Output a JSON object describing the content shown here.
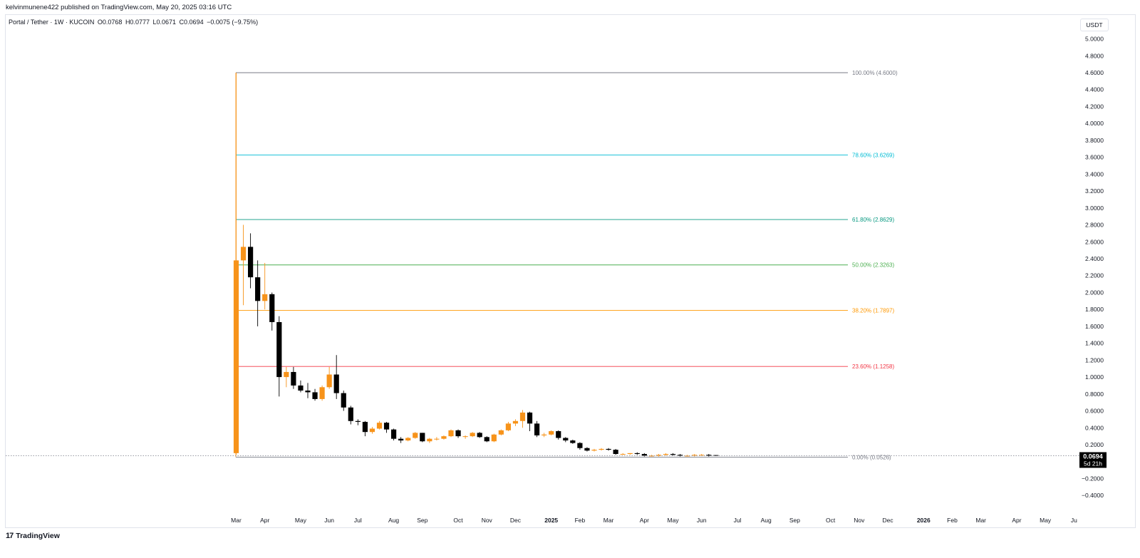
{
  "publisher_line": "kelvinmunene422 published on TradingView.com, May 20, 2025 03:16 UTC",
  "symbol": {
    "name": "Portal / Tether · 1W · KUCOIN",
    "open": "O0.0768",
    "high": "H0.0777",
    "low": "L0.0671",
    "close": "C0.0694",
    "change": "−0.0075 (−9.75%)"
  },
  "currency_label": "USDT",
  "brand": {
    "logo": "17",
    "name": "TradingView"
  },
  "last_price": {
    "value": "0.0694",
    "countdown": "5d 21h"
  },
  "colors": {
    "up": "#f7931a",
    "down": "#000000",
    "axis_text": "#131722"
  },
  "chart_data": {
    "type": "candlestick",
    "title": "Portal / Tether · 1W · KUCOIN",
    "ylabel": "USDT",
    "ylim": [
      -0.48,
      5.1
    ],
    "y_ticks": [
      "5.0000",
      "4.8000",
      "4.6000",
      "4.4000",
      "4.2000",
      "4.0000",
      "3.8000",
      "3.6000",
      "3.4000",
      "3.2000",
      "3.0000",
      "2.8000",
      "2.6000",
      "2.4000",
      "2.2000",
      "2.0000",
      "1.8000",
      "1.6000",
      "1.4000",
      "1.2000",
      "1.0000",
      "0.8000",
      "0.6000",
      "0.4000",
      "0.2000",
      "−0.2000",
      "−0.4000"
    ],
    "x_ticks": [
      {
        "label": "Mar",
        "week": 0,
        "bold": false
      },
      {
        "label": "Apr",
        "week": 4,
        "bold": false
      },
      {
        "label": "May",
        "week": 9,
        "bold": false
      },
      {
        "label": "Jun",
        "week": 13,
        "bold": false
      },
      {
        "label": "Jul",
        "week": 17,
        "bold": false
      },
      {
        "label": "Aug",
        "week": 22,
        "bold": false
      },
      {
        "label": "Sep",
        "week": 26,
        "bold": false
      },
      {
        "label": "Oct",
        "week": 31,
        "bold": false
      },
      {
        "label": "Nov",
        "week": 35,
        "bold": false
      },
      {
        "label": "Dec",
        "week": 39,
        "bold": false
      },
      {
        "label": "2025",
        "week": 44,
        "bold": true
      },
      {
        "label": "Feb",
        "week": 48,
        "bold": false
      },
      {
        "label": "Mar",
        "week": 52,
        "bold": false
      },
      {
        "label": "Apr",
        "week": 57,
        "bold": false
      },
      {
        "label": "May",
        "week": 61,
        "bold": false
      },
      {
        "label": "Jun",
        "week": 65,
        "bold": false
      },
      {
        "label": "Jul",
        "week": 70,
        "bold": false
      },
      {
        "label": "Aug",
        "week": 74,
        "bold": false
      },
      {
        "label": "Sep",
        "week": 78,
        "bold": false
      },
      {
        "label": "Oct",
        "week": 83,
        "bold": false
      },
      {
        "label": "Nov",
        "week": 87,
        "bold": false
      },
      {
        "label": "Dec",
        "week": 91,
        "bold": false
      },
      {
        "label": "2026",
        "week": 96,
        "bold": true
      },
      {
        "label": "Feb",
        "week": 100,
        "bold": false
      },
      {
        "label": "Mar",
        "week": 104,
        "bold": false
      },
      {
        "label": "Apr",
        "week": 109,
        "bold": false
      },
      {
        "label": "May",
        "week": 113,
        "bold": false
      },
      {
        "label": "Ju",
        "week": 117,
        "bold": false
      }
    ],
    "candles": [
      {
        "o": 0.1,
        "h": 4.6,
        "l": 0.08,
        "c": 2.38
      },
      {
        "o": 2.38,
        "h": 2.8,
        "l": 1.85,
        "c": 2.54
      },
      {
        "o": 2.54,
        "h": 2.7,
        "l": 2.05,
        "c": 2.18
      },
      {
        "o": 2.18,
        "h": 2.38,
        "l": 1.6,
        "c": 1.9
      },
      {
        "o": 1.9,
        "h": 2.35,
        "l": 1.8,
        "c": 1.98
      },
      {
        "o": 1.98,
        "h": 2.0,
        "l": 1.55,
        "c": 1.65
      },
      {
        "o": 1.65,
        "h": 1.72,
        "l": 0.77,
        "c": 1.0
      },
      {
        "o": 1.0,
        "h": 1.12,
        "l": 0.88,
        "c": 1.06
      },
      {
        "o": 1.06,
        "h": 1.12,
        "l": 0.86,
        "c": 0.9
      },
      {
        "o": 0.9,
        "h": 0.96,
        "l": 0.82,
        "c": 0.84
      },
      {
        "o": 0.84,
        "h": 0.93,
        "l": 0.75,
        "c": 0.82
      },
      {
        "o": 0.82,
        "h": 0.86,
        "l": 0.72,
        "c": 0.74
      },
      {
        "o": 0.74,
        "h": 0.9,
        "l": 0.72,
        "c": 0.88
      },
      {
        "o": 0.88,
        "h": 1.12,
        "l": 0.86,
        "c": 1.03
      },
      {
        "o": 1.03,
        "h": 1.26,
        "l": 0.74,
        "c": 0.81
      },
      {
        "o": 0.81,
        "h": 0.84,
        "l": 0.6,
        "c": 0.64
      },
      {
        "o": 0.64,
        "h": 0.66,
        "l": 0.44,
        "c": 0.48
      },
      {
        "o": 0.48,
        "h": 0.5,
        "l": 0.43,
        "c": 0.47
      },
      {
        "o": 0.47,
        "h": 0.48,
        "l": 0.3,
        "c": 0.35
      },
      {
        "o": 0.35,
        "h": 0.41,
        "l": 0.33,
        "c": 0.39
      },
      {
        "o": 0.39,
        "h": 0.48,
        "l": 0.38,
        "c": 0.46
      },
      {
        "o": 0.46,
        "h": 0.47,
        "l": 0.34,
        "c": 0.38
      },
      {
        "o": 0.38,
        "h": 0.39,
        "l": 0.25,
        "c": 0.27
      },
      {
        "o": 0.27,
        "h": 0.29,
        "l": 0.22,
        "c": 0.25
      },
      {
        "o": 0.25,
        "h": 0.29,
        "l": 0.24,
        "c": 0.28
      },
      {
        "o": 0.28,
        "h": 0.35,
        "l": 0.27,
        "c": 0.34
      },
      {
        "o": 0.34,
        "h": 0.34,
        "l": 0.23,
        "c": 0.24
      },
      {
        "o": 0.24,
        "h": 0.28,
        "l": 0.22,
        "c": 0.27
      },
      {
        "o": 0.27,
        "h": 0.29,
        "l": 0.25,
        "c": 0.27
      },
      {
        "o": 0.27,
        "h": 0.31,
        "l": 0.26,
        "c": 0.3
      },
      {
        "o": 0.3,
        "h": 0.38,
        "l": 0.29,
        "c": 0.37
      },
      {
        "o": 0.37,
        "h": 0.38,
        "l": 0.28,
        "c": 0.3
      },
      {
        "o": 0.3,
        "h": 0.31,
        "l": 0.27,
        "c": 0.3
      },
      {
        "o": 0.3,
        "h": 0.35,
        "l": 0.29,
        "c": 0.34
      },
      {
        "o": 0.34,
        "h": 0.35,
        "l": 0.28,
        "c": 0.29
      },
      {
        "o": 0.29,
        "h": 0.3,
        "l": 0.23,
        "c": 0.24
      },
      {
        "o": 0.24,
        "h": 0.33,
        "l": 0.23,
        "c": 0.32
      },
      {
        "o": 0.32,
        "h": 0.38,
        "l": 0.31,
        "c": 0.37
      },
      {
        "o": 0.37,
        "h": 0.47,
        "l": 0.36,
        "c": 0.45
      },
      {
        "o": 0.45,
        "h": 0.5,
        "l": 0.42,
        "c": 0.48
      },
      {
        "o": 0.48,
        "h": 0.61,
        "l": 0.4,
        "c": 0.58
      },
      {
        "o": 0.58,
        "h": 0.59,
        "l": 0.36,
        "c": 0.45
      },
      {
        "o": 0.45,
        "h": 0.48,
        "l": 0.29,
        "c": 0.31
      },
      {
        "o": 0.31,
        "h": 0.34,
        "l": 0.29,
        "c": 0.32
      },
      {
        "o": 0.32,
        "h": 0.37,
        "l": 0.31,
        "c": 0.36
      },
      {
        "o": 0.36,
        "h": 0.37,
        "l": 0.26,
        "c": 0.28
      },
      {
        "o": 0.28,
        "h": 0.29,
        "l": 0.23,
        "c": 0.25
      },
      {
        "o": 0.25,
        "h": 0.26,
        "l": 0.21,
        "c": 0.22
      },
      {
        "o": 0.22,
        "h": 0.23,
        "l": 0.14,
        "c": 0.16
      },
      {
        "o": 0.16,
        "h": 0.17,
        "l": 0.12,
        "c": 0.13
      },
      {
        "o": 0.13,
        "h": 0.15,
        "l": 0.12,
        "c": 0.14
      },
      {
        "o": 0.14,
        "h": 0.16,
        "l": 0.13,
        "c": 0.15
      },
      {
        "o": 0.15,
        "h": 0.16,
        "l": 0.13,
        "c": 0.14
      },
      {
        "o": 0.14,
        "h": 0.15,
        "l": 0.08,
        "c": 0.09
      },
      {
        "o": 0.09,
        "h": 0.1,
        "l": 0.08,
        "c": 0.09
      },
      {
        "o": 0.09,
        "h": 0.1,
        "l": 0.08,
        "c": 0.1
      },
      {
        "o": 0.1,
        "h": 0.11,
        "l": 0.08,
        "c": 0.09
      },
      {
        "o": 0.09,
        "h": 0.1,
        "l": 0.06,
        "c": 0.07
      },
      {
        "o": 0.07,
        "h": 0.08,
        "l": 0.06,
        "c": 0.07
      },
      {
        "o": 0.07,
        "h": 0.09,
        "l": 0.06,
        "c": 0.08
      },
      {
        "o": 0.08,
        "h": 0.1,
        "l": 0.07,
        "c": 0.09
      },
      {
        "o": 0.09,
        "h": 0.1,
        "l": 0.07,
        "c": 0.08
      },
      {
        "o": 0.08,
        "h": 0.09,
        "l": 0.06,
        "c": 0.07
      },
      {
        "o": 0.07,
        "h": 0.08,
        "l": 0.06,
        "c": 0.07
      },
      {
        "o": 0.07,
        "h": 0.09,
        "l": 0.06,
        "c": 0.08
      },
      {
        "o": 0.08,
        "h": 0.09,
        "l": 0.07,
        "c": 0.08
      },
      {
        "o": 0.08,
        "h": 0.09,
        "l": 0.06,
        "c": 0.07
      },
      {
        "o": 0.0768,
        "h": 0.0777,
        "l": 0.0671,
        "c": 0.0694
      }
    ],
    "fib_levels": [
      {
        "label": "100.00% (4.6000)",
        "value": 4.6,
        "color": "#787b86"
      },
      {
        "label": "78.60% (3.6269)",
        "value": 3.6269,
        "color": "#00bcd4"
      },
      {
        "label": "61.80% (2.8629)",
        "value": 2.8629,
        "color": "#089981"
      },
      {
        "label": "50.00% (2.3263)",
        "value": 2.3263,
        "color": "#4caf50"
      },
      {
        "label": "38.20% (1.7897)",
        "value": 1.7897,
        "color": "#ff9800"
      },
      {
        "label": "23.60% (1.1258)",
        "value": 1.1258,
        "color": "#f23645"
      },
      {
        "label": "0.00% (0.0526)",
        "value": 0.0526,
        "color": "#787b86"
      }
    ]
  }
}
